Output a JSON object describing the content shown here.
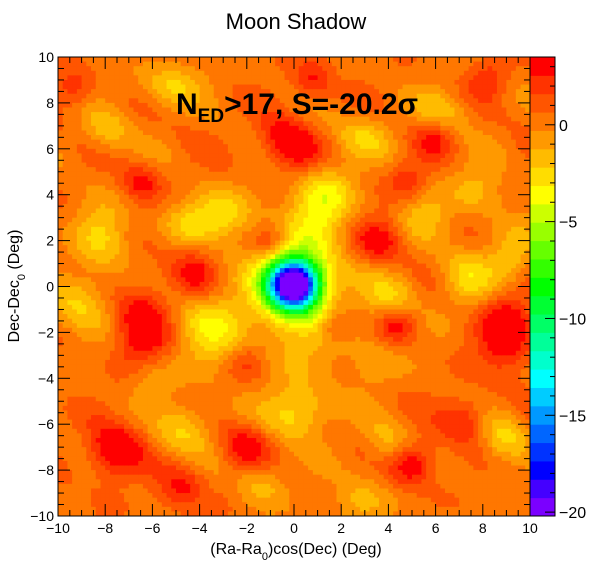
{
  "chart_data": {
    "type": "heatmap",
    "title": "Moon Shadow",
    "xlabel": {
      "pre": "(Ra-Ra",
      "sub": "0",
      "post": ")cos(Dec) (Deg)"
    },
    "ylabel": {
      "pre": "Dec-Dec",
      "sub": "0",
      "post": " (Deg)"
    },
    "annotation": {
      "N": "N",
      "sub": "ED",
      "rest": ">17, S=-20.2",
      "sigma": "σ"
    },
    "xlim": [
      -10,
      10
    ],
    "ylim": [
      -10,
      10
    ],
    "x_ticks": [
      -10,
      -8,
      -6,
      -4,
      -2,
      0,
      2,
      4,
      6,
      8,
      10
    ],
    "y_ticks": [
      -10,
      -8,
      -6,
      -4,
      -2,
      0,
      2,
      4,
      6,
      8,
      10
    ],
    "x_tick_labels": [
      "−10",
      "−8",
      "−6",
      "−4",
      "−2",
      "0",
      "2",
      "4",
      "6",
      "8",
      "10"
    ],
    "y_tick_labels": [
      "−10",
      "−8",
      "−6",
      "−4",
      "−2",
      "0",
      "2",
      "4",
      "6",
      "8",
      "10"
    ],
    "zlim": [
      -20.2,
      3.5
    ],
    "z_ticks": [
      0,
      -5,
      -10,
      -15,
      -20
    ],
    "z_tick_labels": [
      "0",
      "−5",
      "−10",
      "−15",
      "−20"
    ],
    "grid": false,
    "palette": [
      "#7b00ff",
      "#4400ff",
      "#0000ff",
      "#0033ff",
      "#0066ff",
      "#0099ff",
      "#00ccff",
      "#00ffff",
      "#00ffcc",
      "#00ff99",
      "#00ff66",
      "#00ff33",
      "#00ff00",
      "#33ff00",
      "#66ff00",
      "#99ff00",
      "#ccff00",
      "#ffff00",
      "#ffdd00",
      "#ffbb00",
      "#ff9900",
      "#ff7700",
      "#ff5500",
      "#ff3300",
      "#ff0000"
    ],
    "minimum": {
      "x": -0.1,
      "y": 0.1,
      "value": -20.2
    },
    "features": [
      {
        "x": 0.0,
        "y": 0.1,
        "amp": -23.5,
        "sx": 0.75,
        "sy": 0.75
      },
      {
        "x": 0.0,
        "y": -0.4,
        "amp": -3,
        "sx": 1.6,
        "sy": 2.2
      },
      {
        "x": 1.3,
        "y": 3.9,
        "amp": -3.5,
        "sx": 0.9,
        "sy": 0.9
      },
      {
        "x": -2.8,
        "y": 3.2,
        "amp": -2.5,
        "sx": 0.8,
        "sy": 0.7
      },
      {
        "x": -4.4,
        "y": 2.8,
        "amp": -2.5,
        "sx": 0.9,
        "sy": 0.7
      },
      {
        "x": -8.1,
        "y": 2.2,
        "amp": -2.5,
        "sx": 0.8,
        "sy": 1.0
      },
      {
        "x": -9.0,
        "y": -0.6,
        "amp": -2.5,
        "sx": 0.9,
        "sy": 0.9
      },
      {
        "x": -3.5,
        "y": -1.8,
        "amp": -3,
        "sx": 1.0,
        "sy": 1.2
      },
      {
        "x": 4.2,
        "y": -0.6,
        "amp": -2.5,
        "sx": 0.8,
        "sy": 0.9
      },
      {
        "x": 7.4,
        "y": 0.3,
        "amp": -2.5,
        "sx": 0.8,
        "sy": 0.9
      },
      {
        "x": 9.2,
        "y": 1.2,
        "amp": -2.5,
        "sx": 0.7,
        "sy": 0.9
      },
      {
        "x": 5.5,
        "y": 3.0,
        "amp": -2,
        "sx": 0.8,
        "sy": 0.8
      },
      {
        "x": 7.8,
        "y": 4.2,
        "amp": -2,
        "sx": 0.8,
        "sy": 0.8
      },
      {
        "x": 3.0,
        "y": 6.5,
        "amp": -2,
        "sx": 0.9,
        "sy": 0.7
      },
      {
        "x": 6.2,
        "y": 7.6,
        "amp": -2,
        "sx": 0.8,
        "sy": 0.7
      },
      {
        "x": -5.2,
        "y": 8.8,
        "amp": -2.5,
        "sx": 0.9,
        "sy": 0.7
      },
      {
        "x": -8.0,
        "y": 6.8,
        "amp": -2,
        "sx": 0.7,
        "sy": 0.7
      },
      {
        "x": 0.2,
        "y": -5.5,
        "amp": -3,
        "sx": 1.0,
        "sy": 0.8
      },
      {
        "x": -4.6,
        "y": -6.2,
        "amp": -2.5,
        "sx": 0.8,
        "sy": 0.8
      },
      {
        "x": -6.1,
        "y": -4.0,
        "amp": -2,
        "sx": 0.7,
        "sy": 0.7
      },
      {
        "x": -1.4,
        "y": -8.6,
        "amp": -2,
        "sx": 0.7,
        "sy": 0.7
      },
      {
        "x": 8.9,
        "y": -6.6,
        "amp": -2.5,
        "sx": 0.7,
        "sy": 0.8
      },
      {
        "x": 2.8,
        "y": -9.3,
        "amp": -2,
        "sx": 0.8,
        "sy": 0.7
      },
      {
        "x": 4.0,
        "y": -6.9,
        "amp": -2,
        "sx": 0.7,
        "sy": 0.7
      },
      {
        "x": 3.4,
        "y": -3.3,
        "amp": -1.5,
        "sx": 0.7,
        "sy": 0.7
      },
      {
        "x": 0.9,
        "y": 2.2,
        "amp": -1.5,
        "sx": 0.8,
        "sy": 0.8
      },
      {
        "x": -0.6,
        "y": 6.5,
        "amp": 2.5,
        "sx": 0.7,
        "sy": 0.7
      },
      {
        "x": 0.2,
        "y": 5.8,
        "amp": 2.5,
        "sx": 0.7,
        "sy": 0.7
      },
      {
        "x": -6.4,
        "y": -1.8,
        "amp": 3.5,
        "sx": 0.8,
        "sy": 1.4
      },
      {
        "x": -7.6,
        "y": -7.2,
        "amp": 4,
        "sx": 0.8,
        "sy": 0.8
      },
      {
        "x": 9.0,
        "y": -1.9,
        "amp": 4,
        "sx": 0.8,
        "sy": 1.2
      },
      {
        "x": 3.6,
        "y": 2.0,
        "amp": 3,
        "sx": 0.8,
        "sy": 0.7
      },
      {
        "x": 5.0,
        "y": -7.7,
        "amp": 3.5,
        "sx": 0.7,
        "sy": 0.7
      },
      {
        "x": -2.0,
        "y": -7.0,
        "amp": 3,
        "sx": 0.7,
        "sy": 0.7
      },
      {
        "x": -4.2,
        "y": 0.6,
        "amp": 2.5,
        "sx": 0.7,
        "sy": 0.8
      },
      {
        "x": 4.4,
        "y": -1.6,
        "amp": 3.5,
        "sx": 0.6,
        "sy": 0.6
      },
      {
        "x": 6.0,
        "y": 6.5,
        "amp": 2.5,
        "sx": 0.6,
        "sy": 0.6
      },
      {
        "x": -6.5,
        "y": 4.5,
        "amp": 2.5,
        "sx": 0.6,
        "sy": 0.6
      },
      {
        "x": -4.8,
        "y": -8.8,
        "amp": 2.5,
        "sx": 0.7,
        "sy": 0.7
      },
      {
        "x": 7.2,
        "y": -5.8,
        "amp": 2.5,
        "sx": 0.7,
        "sy": 0.7
      },
      {
        "x": 0.8,
        "y": 9.0,
        "amp": 2.5,
        "sx": 0.6,
        "sy": 0.6
      },
      {
        "x": -1.0,
        "y": 2.0,
        "amp": 2,
        "sx": 0.5,
        "sy": 0.5
      },
      {
        "x": 1.7,
        "y": -1.8,
        "amp": 2,
        "sx": 0.5,
        "sy": 0.5
      },
      {
        "x": 4.8,
        "y": 4.6,
        "amp": 2,
        "sx": 0.6,
        "sy": 0.6
      },
      {
        "x": -2.0,
        "y": -3.3,
        "amp": 2,
        "sx": 0.6,
        "sy": 0.6
      },
      {
        "x": 8.2,
        "y": 9.0,
        "amp": 2,
        "sx": 0.6,
        "sy": 0.6
      },
      {
        "x": -9.3,
        "y": 8.6,
        "amp": 2,
        "sx": 0.6,
        "sy": 0.6
      }
    ],
    "baseline": 0.3
  }
}
